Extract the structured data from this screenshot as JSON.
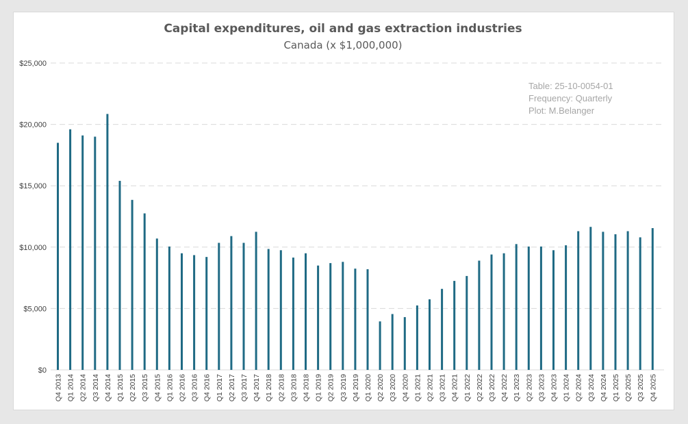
{
  "chart_data": {
    "type": "bar",
    "title": "Capital expenditures, oil and gas extraction industries",
    "subtitle": "Canada (x $1,000,000)",
    "xlabel": "",
    "ylabel": "",
    "ylim": [
      0,
      25000
    ],
    "yticks": [
      0,
      5000,
      10000,
      15000,
      20000,
      25000
    ],
    "ytick_labels": [
      "$0",
      "$5,000",
      "$10,000",
      "$15,000",
      "$20,000",
      "$25,000"
    ],
    "grid": true,
    "legend": "none",
    "bar_color": "#1f6a84",
    "annotations": [
      "Table: 25-10-0054-01",
      "Frequency: Quarterly",
      "Plot: M.Belanger"
    ],
    "categories": [
      "Q4 2013",
      "Q1 2014",
      "Q2 2014",
      "Q3 2014",
      "Q4 2014",
      "Q1 2015",
      "Q2 2015",
      "Q3 2015",
      "Q4 2015",
      "Q1 2016",
      "Q2 2016",
      "Q3 2016",
      "Q4 2016",
      "Q1 2017",
      "Q2 2017",
      "Q3 2017",
      "Q4 2017",
      "Q1 2018",
      "Q2 2018",
      "Q3 2018",
      "Q4 2018",
      "Q1 2019",
      "Q2 2019",
      "Q3 2019",
      "Q4 2019",
      "Q1 2020",
      "Q2 2020",
      "Q3 2020",
      "Q4 2020",
      "Q1 2021",
      "Q2 2021",
      "Q3 2021",
      "Q4 2021",
      "Q1 2022",
      "Q2 2022",
      "Q3 2022",
      "Q4 2022",
      "Q1 2023",
      "Q2 2023",
      "Q3 2023",
      "Q4 2023",
      "Q1 2024",
      "Q2 2024",
      "Q3 2024",
      "Q4 2024",
      "Q1 2025",
      "Q2 2025",
      "Q3 2025",
      "Q4 2025"
    ],
    "values": [
      18500,
      19600,
      19100,
      19000,
      20850,
      15400,
      13850,
      12750,
      10700,
      10050,
      9500,
      9350,
      9200,
      10350,
      10900,
      10350,
      11250,
      9850,
      9750,
      9150,
      9500,
      8500,
      8700,
      8800,
      8250,
      8200,
      3950,
      4550,
      4300,
      5250,
      5750,
      6600,
      7250,
      7650,
      8900,
      9400,
      9500,
      10250,
      10050,
      10050,
      9750,
      10150,
      11300,
      11650,
      11250,
      11050,
      11300,
      10800,
      11550
    ]
  }
}
